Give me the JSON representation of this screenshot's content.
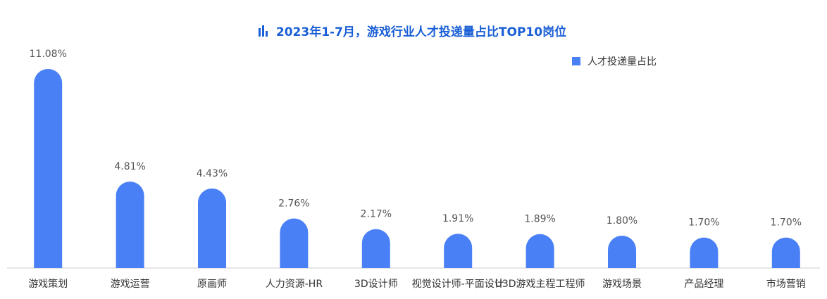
{
  "chart_data": {
    "type": "bar",
    "title": "2023年1-7月，游戏行业人才投递量占比TOP10岗位",
    "categories": [
      "游戏策划",
      "游戏运营",
      "原画师",
      "人力资源-HR",
      "3D设计师",
      "视觉设计师-平面设计",
      "U3D游戏主程工程师",
      "游戏场景",
      "产品经理",
      "市场营销"
    ],
    "series": [
      {
        "name": "人才投递量占比",
        "color": "#4a80f5",
        "values": [
          11.08,
          4.81,
          4.43,
          2.76,
          2.17,
          1.91,
          1.89,
          1.8,
          1.7,
          1.7
        ],
        "value_labels": [
          "11.08%",
          "4.81%",
          "4.43%",
          "2.76%",
          "2.17%",
          "1.91%",
          "1.89%",
          "1.80%",
          "1.70%",
          "1.70%"
        ]
      }
    ],
    "legend": "top-right"
  }
}
